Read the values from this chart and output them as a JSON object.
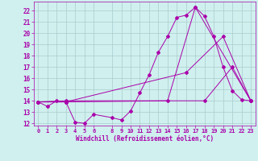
{
  "title": "",
  "xlabel": "Windchill (Refroidissement éolien,°C)",
  "ylabel": "",
  "bg_color": "#cff0ee",
  "line_color": "#aa00aa",
  "grid_color": "#aacccc",
  "xlim": [
    -0.5,
    23.5
  ],
  "ylim": [
    11.8,
    22.8
  ],
  "yticks": [
    12,
    13,
    14,
    15,
    16,
    17,
    18,
    19,
    20,
    21,
    22
  ],
  "xticks": [
    0,
    1,
    2,
    3,
    4,
    5,
    6,
    8,
    9,
    10,
    11,
    12,
    13,
    14,
    15,
    16,
    17,
    18,
    19,
    20,
    21,
    22,
    23
  ],
  "series": [
    {
      "x": [
        0,
        1,
        2,
        3,
        4,
        5,
        6,
        8,
        9,
        10,
        11,
        12,
        13,
        14,
        15,
        16,
        17,
        18,
        19,
        20,
        21,
        22,
        23
      ],
      "y": [
        13.9,
        13.5,
        14.0,
        13.9,
        12.1,
        12.0,
        12.8,
        12.5,
        12.3,
        13.1,
        14.7,
        16.3,
        18.3,
        19.7,
        21.4,
        21.6,
        22.3,
        21.5,
        19.7,
        17.0,
        14.9,
        14.1,
        14.0
      ]
    },
    {
      "x": [
        0,
        3,
        14,
        17,
        23
      ],
      "y": [
        13.9,
        13.9,
        14.0,
        22.3,
        14.0
      ]
    },
    {
      "x": [
        0,
        3,
        16,
        20,
        23
      ],
      "y": [
        13.9,
        13.9,
        16.5,
        19.7,
        14.0
      ]
    },
    {
      "x": [
        0,
        3,
        18,
        21,
        23
      ],
      "y": [
        13.9,
        14.0,
        14.0,
        17.0,
        14.0
      ]
    }
  ]
}
